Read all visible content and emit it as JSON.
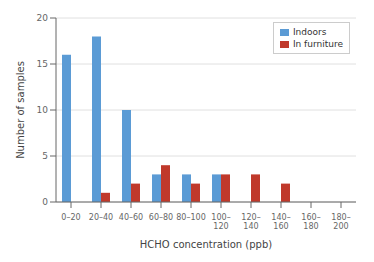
{
  "chart_data": {
    "type": "bar",
    "xlabel": "HCHO concentration (ppb)",
    "ylabel": "Number of samples",
    "categories": [
      "0–20",
      "20–40",
      "40–60",
      "60–80",
      "80–100",
      "100–\n120",
      "120–\n140",
      "140–\n160",
      "160–\n180",
      "180–\n200"
    ],
    "series": [
      {
        "name": "Indoors",
        "color": "#5b9bd5",
        "values": [
          16,
          18,
          10,
          3,
          3,
          3,
          0,
          0,
          0,
          0
        ]
      },
      {
        "name": "In furniture",
        "color": "#c0392b",
        "values": [
          0,
          1,
          2,
          4,
          2,
          3,
          3,
          2,
          0,
          0
        ]
      }
    ],
    "ylim": [
      0,
      20
    ],
    "yticks": [
      0,
      5,
      10,
      15,
      20
    ],
    "grid": true,
    "legend": "upper right"
  }
}
